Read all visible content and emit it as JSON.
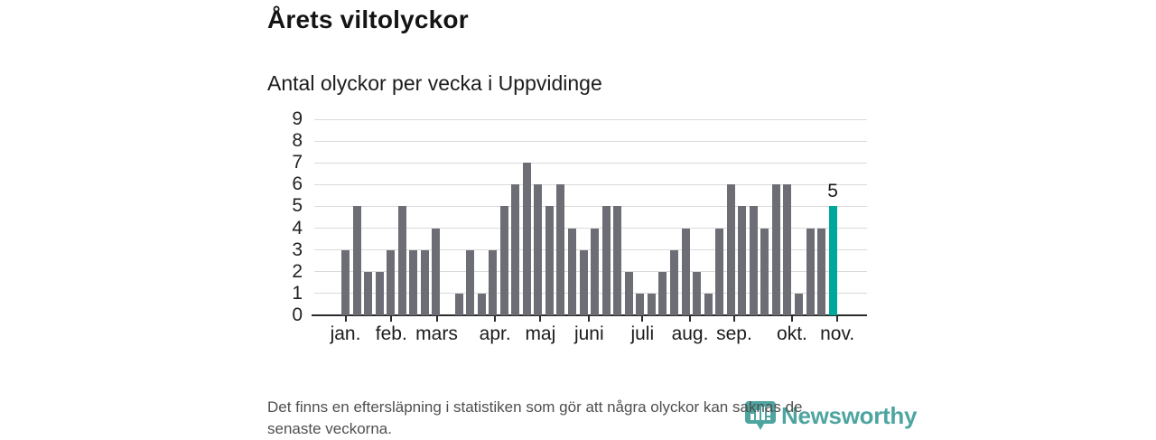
{
  "header": {
    "title": "Årets viltolyckor",
    "subtitle": "Antal olyckor per vecka i Uppvidinge"
  },
  "chart_data": {
    "type": "bar",
    "title": "Årets viltolyckor",
    "subtitle": "Antal olyckor per vecka i Uppvidinge",
    "x_unit": "week",
    "values": [
      3,
      5,
      2,
      2,
      3,
      5,
      3,
      3,
      4,
      0,
      1,
      3,
      1,
      3,
      5,
      6,
      7,
      6,
      5,
      6,
      4,
      3,
      4,
      5,
      5,
      2,
      1,
      1,
      2,
      3,
      4,
      2,
      1,
      4,
      6,
      5,
      5,
      4,
      6,
      6,
      1,
      4,
      4,
      5
    ],
    "highlight": {
      "index": 43,
      "value": 5,
      "label": "5"
    },
    "months": [
      {
        "label": "jan.",
        "week": 1.0
      },
      {
        "label": "feb.",
        "week": 5.05
      },
      {
        "label": "mars",
        "week": 9.05
      },
      {
        "label": "apr.",
        "week": 14.2
      },
      {
        "label": "maj",
        "week": 18.2
      },
      {
        "label": "juni",
        "week": 22.5
      },
      {
        "label": "juli",
        "week": 27.2
      },
      {
        "label": "aug.",
        "week": 31.4
      },
      {
        "label": "sep.",
        "week": 35.3
      },
      {
        "label": "okt.",
        "week": 40.4
      },
      {
        "label": "nov.",
        "week": 44.4
      }
    ],
    "ylim": [
      0,
      9
    ],
    "yticks": [
      0,
      1,
      2,
      3,
      4,
      5,
      6,
      7,
      8,
      9
    ],
    "bar_color": "#6d6d75",
    "highlight_color": "#00a79d",
    "grid": true,
    "legend": false
  },
  "footer": {
    "note_lines": [
      "Det finns en eftersläpning i statistiken som gör att några olyckor kan saknas de",
      "senaste veckorna."
    ],
    "brand": "Newsworthy"
  },
  "colors": {
    "accent_teal": "#00a79d",
    "bar_gray": "#6d6d75",
    "logo_teal": "#3f9e99"
  }
}
